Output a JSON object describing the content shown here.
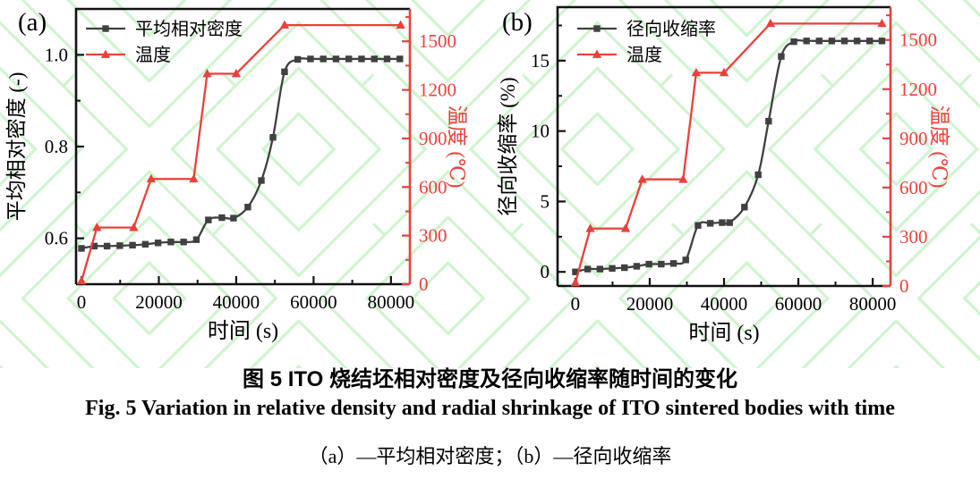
{
  "captions": {
    "zh": "图 5 ITO 烧结坯相对密度及径向收缩率随时间的变化",
    "en": "Fig. 5 Variation in relative density and radial shrinkage of ITO sintered bodies with time",
    "note": "（a）—平均相对密度；（b）—径向收缩率"
  },
  "colors": {
    "density_black": "#404040",
    "temperature_red": "#e8413c",
    "watermark_green": "#9fe89f",
    "axis_black": "#111111",
    "text_black": "#000000"
  },
  "chart_data": [
    {
      "type": "line",
      "panel_label": "(a)",
      "xlabel": "时间 (s)",
      "ylabel_left": "平均相对密度 (-)",
      "ylabel_right": "温度 (℃)",
      "xlim": [
        -1400,
        84900
      ],
      "xticks": {
        "values": [
          0,
          20000,
          40000,
          60000,
          80000
        ],
        "labels": [
          "0",
          "20000",
          "40000",
          "60000",
          "80000"
        ]
      },
      "ylim_left": [
        0.5,
        1.1
      ],
      "yticks_left": {
        "values": [
          0.6,
          0.8,
          1.0
        ],
        "labels": [
          "0.6",
          "0.8",
          "1.0"
        ]
      },
      "ylim_right": [
        0,
        1700
      ],
      "yticks_right": {
        "values": [
          0,
          300,
          600,
          900,
          1200,
          1500
        ],
        "labels": [
          "0",
          "300",
          "600",
          "900",
          "1200",
          "1500"
        ]
      },
      "grid": false,
      "legend_position": "top-left",
      "legend": [
        "平均相对密度",
        "温度"
      ],
      "series": [
        {
          "name": "平均相对密度",
          "axis": "left",
          "marker": "square",
          "color": "#404040",
          "smooth": true,
          "x": [
            0,
            3300,
            6600,
            9900,
            13200,
            16500,
            19800,
            23100,
            26400,
            29700,
            32800,
            36300,
            39300,
            43000,
            46500,
            49500,
            52500,
            55900,
            59200,
            62500,
            65800,
            69100,
            72400,
            75700,
            79000,
            82300
          ],
          "y": [
            0.578,
            0.583,
            0.583,
            0.584,
            0.585,
            0.587,
            0.59,
            0.592,
            0.592,
            0.597,
            0.64,
            0.645,
            0.644,
            0.668,
            0.726,
            0.82,
            0.963,
            0.99,
            0.991,
            0.991,
            0.991,
            0.991,
            0.991,
            0.991,
            0.991,
            0.991
          ]
        },
        {
          "name": "温度",
          "axis": "right",
          "marker": "triangle",
          "color": "#e8413c",
          "smooth": false,
          "x": [
            0,
            4000,
            13500,
            18000,
            29000,
            32500,
            40000,
            52500,
            82500
          ],
          "y": [
            20,
            350,
            350,
            650,
            650,
            1300,
            1300,
            1600,
            1600
          ]
        }
      ]
    },
    {
      "type": "line",
      "panel_label": "(b)",
      "xlabel": "时间 (s)",
      "ylabel_left": "径向收缩率 (%)",
      "ylabel_right": "温度 (℃)",
      "xlim": [
        -4800,
        84800
      ],
      "xticks": {
        "values": [
          0,
          20000,
          40000,
          60000,
          80000
        ],
        "labels": [
          "0",
          "20000",
          "40000",
          "60000",
          "80000"
        ]
      },
      "ylim_left": [
        -1,
        18.8
      ],
      "yticks_left": {
        "values": [
          0,
          5,
          10,
          15
        ],
        "labels": [
          "0",
          "5",
          "10",
          "15"
        ]
      },
      "ylim_right": [
        0,
        1700
      ],
      "yticks_right": {
        "values": [
          0,
          300,
          600,
          900,
          1200,
          1500
        ],
        "labels": [
          "0",
          "300",
          "600",
          "900",
          "1200",
          "1500"
        ]
      },
      "grid": false,
      "legend_position": "top-left",
      "legend": [
        "径向收缩率",
        "温度"
      ],
      "series": [
        {
          "name": "径向收缩率",
          "axis": "left",
          "marker": "square",
          "color": "#404040",
          "smooth": true,
          "x": [
            0,
            3300,
            6600,
            9900,
            13200,
            16500,
            19800,
            23100,
            26400,
            29700,
            33000,
            36300,
            39500,
            41500,
            45500,
            49200,
            52000,
            55400,
            58800,
            62200,
            65600,
            69000,
            72400,
            75800,
            79200,
            82500
          ],
          "y": [
            0.0,
            0.2,
            0.2,
            0.25,
            0.3,
            0.4,
            0.55,
            0.55,
            0.6,
            0.85,
            3.3,
            3.45,
            3.5,
            3.5,
            4.6,
            6.9,
            10.7,
            15.3,
            16.35,
            16.4,
            16.4,
            16.4,
            16.4,
            16.4,
            16.4,
            16.4
          ]
        },
        {
          "name": "温度",
          "axis": "right",
          "marker": "triangle",
          "color": "#e8413c",
          "smooth": false,
          "x": [
            0,
            4000,
            13500,
            18000,
            29000,
            32500,
            40000,
            52500,
            82500
          ],
          "y": [
            20,
            350,
            350,
            650,
            650,
            1300,
            1300,
            1600,
            1600
          ]
        }
      ]
    }
  ]
}
